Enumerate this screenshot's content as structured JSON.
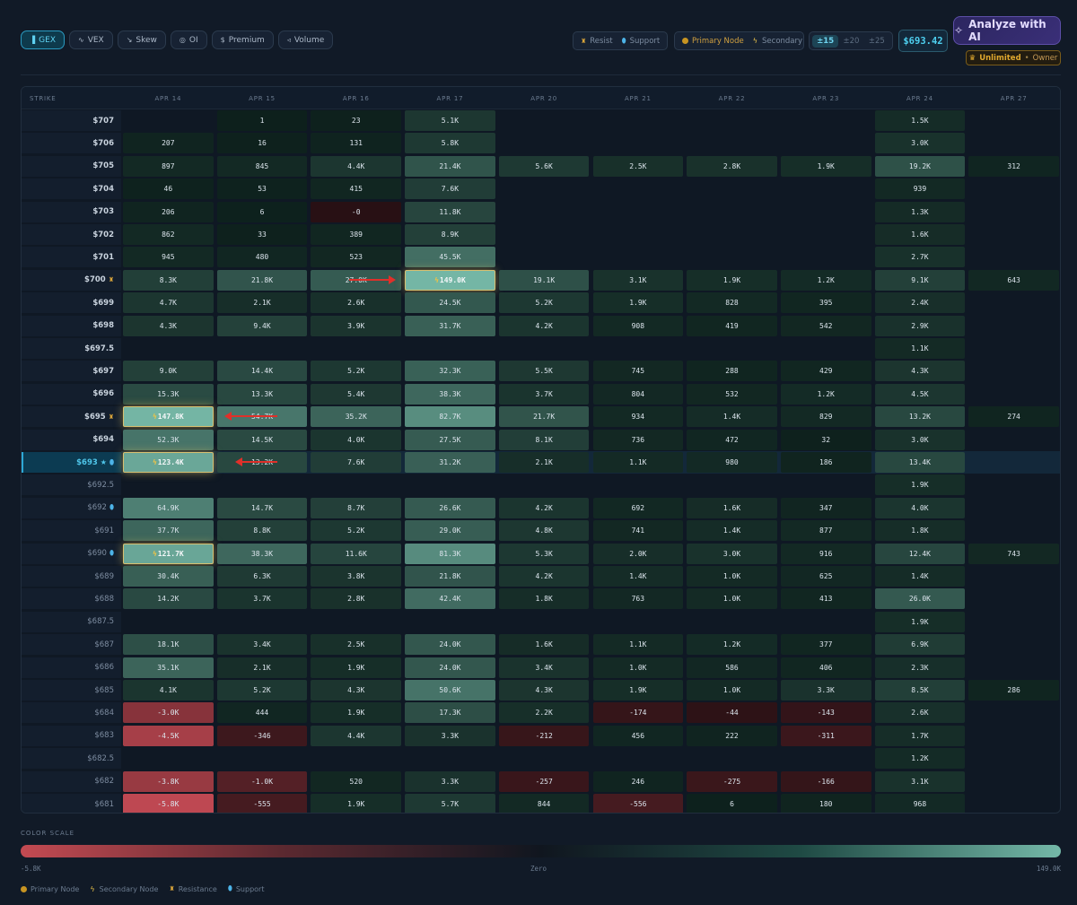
{
  "tabs": [
    {
      "label": "GEX",
      "icon": "bar-chart-icon",
      "glyph": "▐",
      "active": true
    },
    {
      "label": "VEX",
      "icon": "pulse-icon",
      "glyph": "∿"
    },
    {
      "label": "Skew",
      "icon": "trend-icon",
      "glyph": "↘"
    },
    {
      "label": "OI",
      "icon": "eye-icon",
      "glyph": "◎"
    },
    {
      "label": "Premium",
      "icon": "dollar-icon",
      "glyph": "$"
    },
    {
      "label": "Volume",
      "icon": "volume-icon",
      "glyph": "◃"
    }
  ],
  "legend_top": {
    "resist": "Resist",
    "support": "Support",
    "primary": "Primary Node",
    "secondary": "Secondary"
  },
  "range": {
    "options": [
      "±15",
      "±20",
      "±25"
    ],
    "active": 0
  },
  "price": "$693.42",
  "ai": {
    "label": "Analyze with AI"
  },
  "plan": {
    "label": "Unlimited",
    "dot": "•",
    "role": "Owner"
  },
  "grid": {
    "strike_header": "STRIKE",
    "dates": [
      "APR 14",
      "APR 15",
      "APR 16",
      "APR 17",
      "APR 20",
      "APR 21",
      "APR 22",
      "APR 23",
      "APR 24",
      "APR 27"
    ],
    "rows": [
      {
        "strike": "$707",
        "vals": [
          "",
          "1",
          "23",
          "5.1K",
          "",
          "",
          "",
          "",
          "1.5K",
          ""
        ]
      },
      {
        "strike": "$706",
        "vals": [
          "207",
          "16",
          "131",
          "5.8K",
          "",
          "",
          "",
          "",
          "3.0K",
          ""
        ]
      },
      {
        "strike": "$705",
        "vals": [
          "897",
          "845",
          "4.4K",
          "21.4K",
          "5.6K",
          "2.5K",
          "2.8K",
          "1.9K",
          "19.2K",
          "312"
        ]
      },
      {
        "strike": "$704",
        "vals": [
          "46",
          "53",
          "415",
          "7.6K",
          "",
          "",
          "",
          "",
          "939",
          ""
        ]
      },
      {
        "strike": "$703",
        "vals": [
          "206",
          "6",
          "-0",
          "11.8K",
          "",
          "",
          "",
          "",
          "1.3K",
          ""
        ]
      },
      {
        "strike": "$702",
        "vals": [
          "862",
          "33",
          "389",
          "8.9K",
          "",
          "",
          "",
          "",
          "1.6K",
          ""
        ]
      },
      {
        "strike": "$701",
        "vals": [
          "945",
          "480",
          "523",
          "45.5K",
          "",
          "",
          "",
          "",
          "2.7K",
          ""
        ]
      },
      {
        "strike": "$700",
        "resist": true,
        "vals": [
          "8.3K",
          "21.8K",
          "27.0K",
          "149.0K",
          "19.1K",
          "3.1K",
          "1.9K",
          "1.2K",
          "9.1K",
          "643"
        ]
      },
      {
        "strike": "$699",
        "vals": [
          "4.7K",
          "2.1K",
          "2.6K",
          "24.5K",
          "5.2K",
          "1.9K",
          "828",
          "395",
          "2.4K",
          ""
        ]
      },
      {
        "strike": "$698",
        "vals": [
          "4.3K",
          "9.4K",
          "3.9K",
          "31.7K",
          "4.2K",
          "908",
          "419",
          "542",
          "2.9K",
          ""
        ]
      },
      {
        "strike": "$697.5",
        "vals": [
          "",
          "",
          "",
          "",
          "",
          "",
          "",
          "",
          "1.1K",
          ""
        ]
      },
      {
        "strike": "$697",
        "vals": [
          "9.0K",
          "14.4K",
          "5.2K",
          "32.3K",
          "5.5K",
          "745",
          "288",
          "429",
          "4.3K",
          ""
        ]
      },
      {
        "strike": "$696",
        "vals": [
          "15.3K",
          "13.3K",
          "5.4K",
          "38.3K",
          "3.7K",
          "804",
          "532",
          "1.2K",
          "4.5K",
          ""
        ]
      },
      {
        "strike": "$695",
        "resist": true,
        "vals": [
          "147.8K",
          "54.7K",
          "35.2K",
          "82.7K",
          "21.7K",
          "934",
          "1.4K",
          "829",
          "13.2K",
          "274"
        ]
      },
      {
        "strike": "$694",
        "vals": [
          "52.3K",
          "14.5K",
          "4.0K",
          "27.5K",
          "8.1K",
          "736",
          "472",
          "32",
          "3.0K",
          ""
        ]
      },
      {
        "strike": "$693",
        "current": true,
        "star": true,
        "support": true,
        "vals": [
          "123.4K",
          "13.2K",
          "7.6K",
          "31.2K",
          "2.1K",
          "1.1K",
          "980",
          "186",
          "13.4K",
          ""
        ]
      },
      {
        "strike": "$692.5",
        "vals": [
          "",
          "",
          "",
          "",
          "",
          "",
          "",
          "",
          "1.9K",
          ""
        ]
      },
      {
        "strike": "$692",
        "support": true,
        "vals": [
          "64.9K",
          "14.7K",
          "8.7K",
          "26.6K",
          "4.2K",
          "692",
          "1.6K",
          "347",
          "4.0K",
          ""
        ]
      },
      {
        "strike": "$691",
        "vals": [
          "37.7K",
          "8.8K",
          "5.2K",
          "29.0K",
          "4.8K",
          "741",
          "1.4K",
          "877",
          "1.8K",
          ""
        ]
      },
      {
        "strike": "$690",
        "support": true,
        "vals": [
          "121.7K",
          "38.3K",
          "11.6K",
          "81.3K",
          "5.3K",
          "2.0K",
          "3.0K",
          "916",
          "12.4K",
          "743"
        ]
      },
      {
        "strike": "$689",
        "vals": [
          "30.4K",
          "6.3K",
          "3.8K",
          "21.8K",
          "4.2K",
          "1.4K",
          "1.0K",
          "625",
          "1.4K",
          ""
        ]
      },
      {
        "strike": "$688",
        "vals": [
          "14.2K",
          "3.7K",
          "2.8K",
          "42.4K",
          "1.8K",
          "763",
          "1.0K",
          "413",
          "26.0K",
          ""
        ]
      },
      {
        "strike": "$687.5",
        "vals": [
          "",
          "",
          "",
          "",
          "",
          "",
          "",
          "",
          "1.9K",
          ""
        ]
      },
      {
        "strike": "$687",
        "vals": [
          "18.1K",
          "3.4K",
          "2.5K",
          "24.0K",
          "1.6K",
          "1.1K",
          "1.2K",
          "377",
          "6.9K",
          ""
        ]
      },
      {
        "strike": "$686",
        "vals": [
          "35.1K",
          "2.1K",
          "1.9K",
          "24.0K",
          "3.4K",
          "1.0K",
          "586",
          "406",
          "2.3K",
          ""
        ]
      },
      {
        "strike": "$685",
        "vals": [
          "4.1K",
          "5.2K",
          "4.3K",
          "50.6K",
          "4.3K",
          "1.9K",
          "1.0K",
          "3.3K",
          "8.5K",
          "286"
        ]
      },
      {
        "strike": "$684",
        "vals": [
          "-3.0K",
          "444",
          "1.9K",
          "17.3K",
          "2.2K",
          "-174",
          "-44",
          "-143",
          "2.6K",
          ""
        ]
      },
      {
        "strike": "$683",
        "vals": [
          "-4.5K",
          "-346",
          "4.4K",
          "3.3K",
          "-212",
          "456",
          "222",
          "-311",
          "1.7K",
          ""
        ]
      },
      {
        "strike": "$682.5",
        "vals": [
          "",
          "",
          "",
          "",
          "",
          "",
          "",
          "",
          "1.2K",
          ""
        ]
      },
      {
        "strike": "$682",
        "vals": [
          "-3.8K",
          "-1.0K",
          "520",
          "3.3K",
          "-257",
          "246",
          "-275",
          "-166",
          "3.1K",
          ""
        ]
      },
      {
        "strike": "$681",
        "vals": [
          "-5.8K",
          "-555",
          "1.9K",
          "5.7K",
          "844",
          "-556",
          "6",
          "180",
          "968",
          ""
        ]
      }
    ]
  },
  "color_scale": {
    "label": "COLOR SCALE",
    "min": "-5.8K",
    "zero": "Zero",
    "max": "149.0K"
  },
  "footer_legend": {
    "primary": "Primary Node",
    "secondary": "Secondary Node",
    "resistance": "Resistance",
    "support": "Support"
  }
}
